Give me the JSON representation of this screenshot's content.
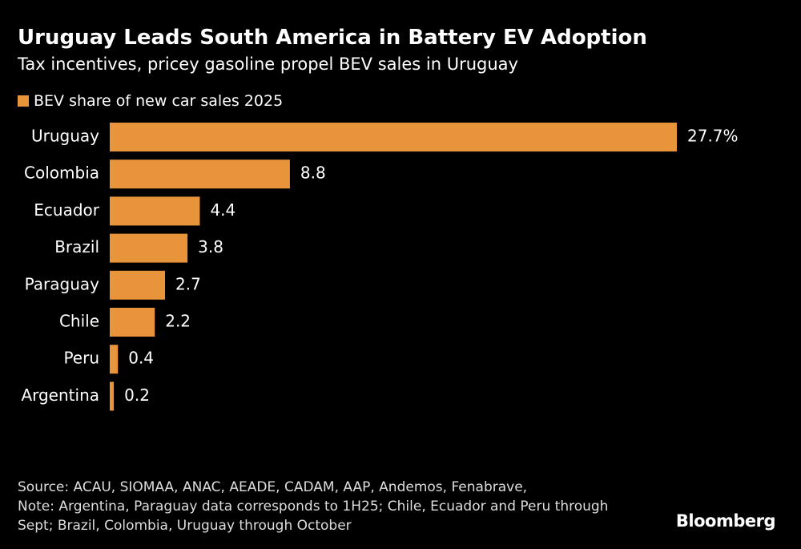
{
  "chart_data": {
    "type": "hbar",
    "title": "Uruguay Leads South America in Battery EV Adoption",
    "subtitle": "Tax incentives, pricey gasoline propel BEV sales in Uruguay",
    "categories": [
      "Uruguay",
      "Colombia",
      "Ecuador",
      "Brazil",
      "Paraguay",
      "Chile",
      "Peru",
      "Argentina"
    ],
    "series": [
      {
        "name": "BEV share of new car sales 2025",
        "color": "#e8943a",
        "values": [
          27.7,
          8.8,
          4.4,
          3.8,
          2.7,
          2.2,
          0.4,
          0.2
        ],
        "value_labels": [
          "27.7%",
          "8.8",
          "4.4",
          "3.8",
          "2.7",
          "2.2",
          "0.4",
          "0.2"
        ]
      }
    ],
    "source": "Source: ACAU, SIOMAA, ANAC, AEADE, CADAM, AAP, Andemos, Fenabrave,",
    "note": "Note: Argentina, Paraguay data corresponds to 1H25; Chile, Ecuador and Peru through Sept; Brazil, Colombia, Uruguay through October",
    "brand": "Bloomberg"
  }
}
